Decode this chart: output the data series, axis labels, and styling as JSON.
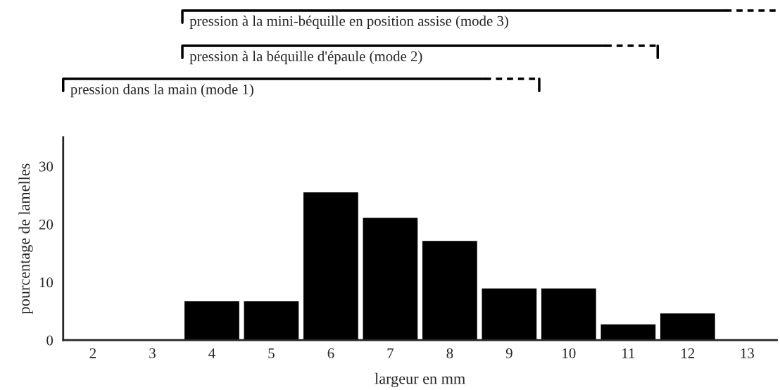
{
  "chart_data": {
    "type": "bar",
    "xlabel": "largeur en mm",
    "ylabel": "pourcentage de lamelles",
    "categories": [
      "2",
      "3",
      "4",
      "5",
      "6",
      "7",
      "8",
      "9",
      "10",
      "11",
      "12",
      "13"
    ],
    "values": [
      0,
      0,
      6.7,
      6.7,
      25.5,
      21.1,
      17.1,
      8.9,
      8.9,
      2.7,
      4.6,
      0
    ],
    "color": "#000000",
    "ylim": [
      0,
      35
    ],
    "yticks": [
      0,
      10,
      20,
      30
    ],
    "grid": false,
    "legend": false,
    "annotations": [
      "pression dans la main (mode 1)",
      "pression à la béquille d'épaule (mode 2)",
      "pression à la mini-béquille en position assise (mode 3)"
    ]
  }
}
